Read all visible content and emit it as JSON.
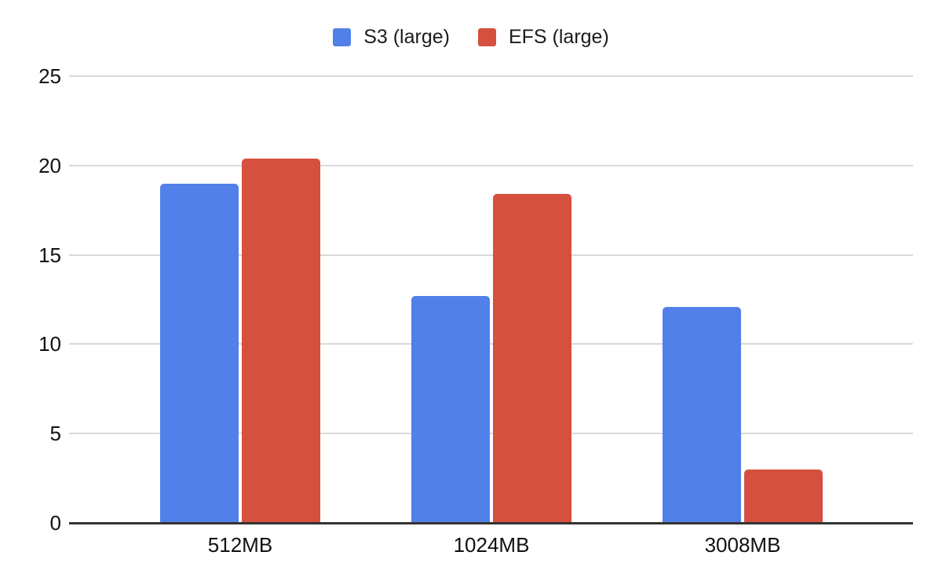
{
  "chart_data": {
    "type": "bar",
    "title": "",
    "xlabel": "",
    "ylabel": "",
    "categories": [
      "512MB",
      "1024MB",
      "3008MB"
    ],
    "series": [
      {
        "name": "S3 (large)",
        "color": "#5180e8",
        "values": [
          19.0,
          12.7,
          12.1
        ]
      },
      {
        "name": "EFS (large)",
        "color": "#d5503e",
        "values": [
          20.4,
          18.4,
          3.0
        ]
      }
    ],
    "ylim": [
      0,
      25
    ],
    "yticks": [
      0,
      5,
      10,
      15,
      20,
      25
    ],
    "grid": true,
    "legend_position": "top",
    "background_color": "#ffffff",
    "grid_color": "#d9d9d9",
    "axis_line_color": "#333333",
    "label_color": "#111111"
  }
}
